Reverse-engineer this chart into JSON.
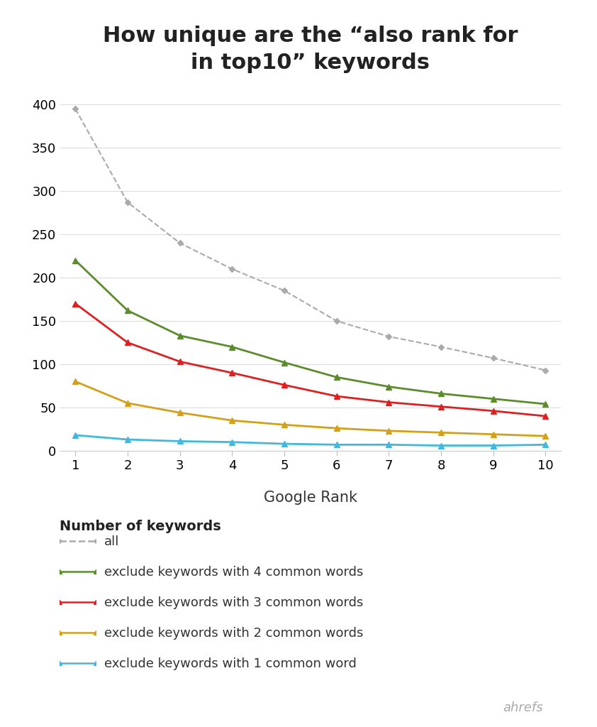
{
  "title_line1": "How unique are the “also rank for",
  "title_line2": "in top10” keywords",
  "xlabel": "Google Rank",
  "x": [
    1,
    2,
    3,
    4,
    5,
    6,
    7,
    8,
    9,
    10
  ],
  "series_all": [
    395,
    287,
    240,
    210,
    185,
    150,
    132,
    120,
    107,
    93
  ],
  "series_4cw": [
    220,
    162,
    133,
    120,
    102,
    85,
    74,
    66,
    60,
    54
  ],
  "series_3cw": [
    170,
    125,
    103,
    90,
    76,
    63,
    56,
    51,
    46,
    40
  ],
  "series_2cw": [
    80,
    55,
    44,
    35,
    30,
    26,
    23,
    21,
    19,
    17
  ],
  "series_1cw": [
    18,
    13,
    11,
    10,
    8,
    7,
    7,
    6,
    6,
    7
  ],
  "color_all": "#aaaaaa",
  "color_4cw": "#5b8c2a",
  "color_3cw": "#e02020",
  "color_2cw": "#d4a017",
  "color_1cw": "#40b8e0",
  "ylim": [
    0,
    420
  ],
  "yticks": [
    0,
    50,
    100,
    150,
    200,
    250,
    300,
    350,
    400
  ],
  "xticks": [
    1,
    2,
    3,
    4,
    5,
    6,
    7,
    8,
    9,
    10
  ],
  "background_color": "#ffffff",
  "legend_title": "Number of keywords",
  "legend_labels": [
    "all",
    "exclude keywords with 4 common words",
    "exclude keywords with 3 common words",
    "exclude keywords with 2 common words",
    "exclude keywords with 1 common word"
  ],
  "watermark": "ahrefs"
}
